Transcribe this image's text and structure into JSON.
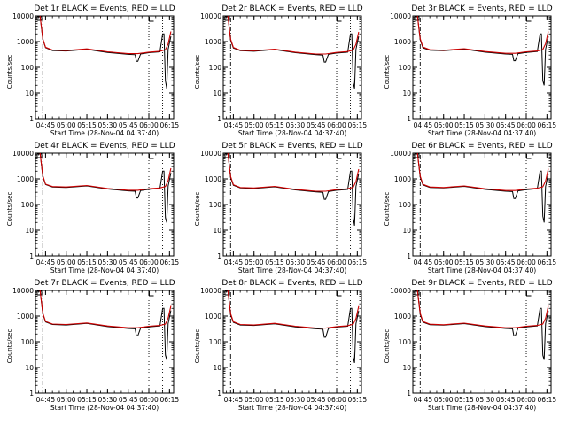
{
  "colors": {
    "background": "#ffffff",
    "events": "#000000",
    "lld": "#cc0000",
    "axes": "#000000"
  },
  "chart_data": [
    {
      "type": "line",
      "title": "Det 1r BLACK = Events, RED = LLD",
      "xlabel": "Start Time (28-Nov-04 04:37:40)",
      "ylabel": "Counts/sec",
      "x_ticks": [
        "04:45",
        "05:00",
        "05:15",
        "05:30",
        "05:45",
        "06:00",
        "06:15"
      ],
      "y_ticks": [
        "1",
        "10",
        "100",
        "1000",
        "10000"
      ],
      "y_scale": "log",
      "ylim": [
        1,
        10000
      ],
      "xlim": [
        "04:37:40",
        "06:18"
      ],
      "series": [
        {
          "name": "Events",
          "x": [
            "04:41",
            "04:43",
            "04:45",
            "04:50",
            "05:00",
            "05:15",
            "05:30",
            "05:45",
            "05:50",
            "05:51",
            "05:52",
            "05:54",
            "06:00",
            "06:08",
            "06:10",
            "06:11",
            "06:12",
            "06:13",
            "06:14",
            "06:16"
          ],
          "y": [
            10000,
            1200,
            580,
            450,
            430,
            500,
            380,
            320,
            310,
            170,
            170,
            330,
            370,
            400,
            2000,
            2000,
            30,
            15,
            500,
            1600
          ]
        },
        {
          "name": "LLD",
          "x": [
            "04:41",
            "04:43",
            "04:45",
            "04:50",
            "05:00",
            "05:15",
            "05:30",
            "05:45",
            "05:52",
            "06:00",
            "06:08",
            "06:12",
            "06:14",
            "06:16"
          ],
          "y": [
            10000,
            1300,
            600,
            470,
            450,
            520,
            400,
            340,
            340,
            390,
            420,
            480,
            800,
            2500
          ]
        }
      ]
    },
    {
      "type": "line",
      "title": "Det 2r BLACK = Events, RED = LLD",
      "xlabel": "Start Time (28-Nov-04 04:37:40)",
      "ylabel": "Counts/sec",
      "x_ticks": [
        "04:45",
        "05:00",
        "05:15",
        "05:30",
        "05:45",
        "06:00",
        "06:15"
      ],
      "y_ticks": [
        "1",
        "10",
        "100",
        "1000",
        "10000"
      ],
      "y_scale": "log",
      "ylim": [
        1,
        10000
      ],
      "xlim": [
        "04:37:40",
        "06:18"
      ],
      "series": [
        {
          "name": "Events",
          "x": [
            "04:41",
            "04:43",
            "04:45",
            "04:50",
            "05:00",
            "05:15",
            "05:30",
            "05:45",
            "05:50",
            "05:51",
            "05:52",
            "05:54",
            "06:00",
            "06:08",
            "06:10",
            "06:11",
            "06:12",
            "06:13",
            "06:14",
            "06:16"
          ],
          "y": [
            10000,
            1100,
            560,
            440,
            420,
            490,
            370,
            310,
            300,
            160,
            160,
            320,
            360,
            390,
            2000,
            2000,
            25,
            15,
            500,
            1600
          ]
        },
        {
          "name": "LLD",
          "x": [
            "04:41",
            "04:43",
            "04:45",
            "04:50",
            "05:00",
            "05:15",
            "05:30",
            "05:45",
            "05:52",
            "06:00",
            "06:08",
            "06:12",
            "06:14",
            "06:16"
          ],
          "y": [
            10000,
            1250,
            590,
            460,
            440,
            510,
            390,
            330,
            330,
            380,
            410,
            470,
            780,
            2400
          ]
        }
      ]
    },
    {
      "type": "line",
      "title": "Det 3r BLACK = Events, RED = LLD",
      "xlabel": "Start Time (28-Nov-04 04:37:40)",
      "ylabel": "Counts/sec",
      "x_ticks": [
        "04:45",
        "05:00",
        "05:15",
        "05:30",
        "05:45",
        "06:00",
        "06:15"
      ],
      "y_ticks": [
        "1",
        "10",
        "100",
        "1000",
        "10000"
      ],
      "y_scale": "log",
      "ylim": [
        1,
        10000
      ],
      "xlim": [
        "04:37:40",
        "06:18"
      ],
      "series": [
        {
          "name": "Events",
          "x": [
            "04:41",
            "04:43",
            "04:45",
            "04:50",
            "05:00",
            "05:15",
            "05:30",
            "05:45",
            "05:50",
            "05:51",
            "05:52",
            "05:54",
            "06:00",
            "06:08",
            "06:10",
            "06:11",
            "06:12",
            "06:13",
            "06:14",
            "06:16"
          ],
          "y": [
            10000,
            1150,
            570,
            460,
            440,
            510,
            390,
            330,
            320,
            180,
            180,
            340,
            380,
            410,
            2000,
            2000,
            30,
            20,
            500,
            1600
          ]
        },
        {
          "name": "LLD",
          "x": [
            "04:41",
            "04:43",
            "04:45",
            "04:50",
            "05:00",
            "05:15",
            "05:30",
            "05:45",
            "05:52",
            "06:00",
            "06:08",
            "06:12",
            "06:14",
            "06:16"
          ],
          "y": [
            10000,
            1300,
            610,
            480,
            460,
            530,
            410,
            350,
            350,
            400,
            430,
            490,
            820,
            2500
          ]
        }
      ]
    },
    {
      "type": "line",
      "title": "Det 4r BLACK = Events, RED = LLD",
      "xlabel": "Start Time (28-Nov-04 04:37:40)",
      "ylabel": "Counts/sec",
      "x_ticks": [
        "04:45",
        "05:00",
        "05:15",
        "05:30",
        "05:45",
        "06:00",
        "06:15"
      ],
      "y_ticks": [
        "1",
        "10",
        "100",
        "1000",
        "10000"
      ],
      "y_scale": "log",
      "ylim": [
        1,
        10000
      ],
      "xlim": [
        "04:37:40",
        "06:18"
      ],
      "series": [
        {
          "name": "Events",
          "x": [
            "04:41",
            "04:43",
            "04:45",
            "04:50",
            "05:00",
            "05:15",
            "05:30",
            "05:45",
            "05:50",
            "05:51",
            "05:52",
            "05:54",
            "06:00",
            "06:08",
            "06:10",
            "06:11",
            "06:12",
            "06:13",
            "06:14",
            "06:16"
          ],
          "y": [
            10000,
            1200,
            600,
            480,
            460,
            530,
            400,
            340,
            330,
            180,
            180,
            350,
            390,
            420,
            2000,
            2000,
            30,
            20,
            520,
            1700
          ]
        },
        {
          "name": "LLD",
          "x": [
            "04:41",
            "04:43",
            "04:45",
            "04:50",
            "05:00",
            "05:15",
            "05:30",
            "05:45",
            "05:52",
            "06:00",
            "06:08",
            "06:12",
            "06:14",
            "06:16"
          ],
          "y": [
            10000,
            1350,
            620,
            500,
            480,
            550,
            420,
            360,
            360,
            410,
            440,
            500,
            850,
            2600
          ]
        }
      ]
    },
    {
      "type": "line",
      "title": "Det 5r BLACK = Events, RED = LLD",
      "xlabel": "Start Time (28-Nov-04 04:37:40)",
      "ylabel": "Counts/sec",
      "x_ticks": [
        "04:45",
        "05:00",
        "05:15",
        "05:30",
        "05:45",
        "06:00",
        "06:15"
      ],
      "y_ticks": [
        "1",
        "10",
        "100",
        "1000",
        "10000"
      ],
      "y_scale": "log",
      "ylim": [
        1,
        10000
      ],
      "xlim": [
        "04:37:40",
        "06:18"
      ],
      "series": [
        {
          "name": "Events",
          "x": [
            "04:41",
            "04:43",
            "04:45",
            "04:50",
            "05:00",
            "05:15",
            "05:30",
            "05:45",
            "05:50",
            "05:51",
            "05:52",
            "05:54",
            "06:00",
            "06:08",
            "06:10",
            "06:11",
            "06:12",
            "06:13",
            "06:14",
            "06:16"
          ],
          "y": [
            10000,
            1100,
            560,
            440,
            420,
            490,
            370,
            310,
            300,
            160,
            160,
            320,
            360,
            390,
            2000,
            2000,
            30,
            15,
            500,
            1600
          ]
        },
        {
          "name": "LLD",
          "x": [
            "04:41",
            "04:43",
            "04:45",
            "04:50",
            "05:00",
            "05:15",
            "05:30",
            "05:45",
            "05:52",
            "06:00",
            "06:08",
            "06:12",
            "06:14",
            "06:16"
          ],
          "y": [
            10000,
            1250,
            590,
            460,
            440,
            510,
            390,
            330,
            330,
            380,
            410,
            470,
            790,
            2400
          ]
        }
      ]
    },
    {
      "type": "line",
      "title": "Det 6r BLACK = Events, RED = LLD",
      "xlabel": "Start Time (28-Nov-04 04:37:40)",
      "ylabel": "Counts/sec",
      "x_ticks": [
        "04:45",
        "05:00",
        "05:15",
        "05:30",
        "05:45",
        "06:00",
        "06:15"
      ],
      "y_ticks": [
        "1",
        "10",
        "100",
        "1000",
        "10000"
      ],
      "y_scale": "log",
      "ylim": [
        1,
        10000
      ],
      "xlim": [
        "04:37:40",
        "06:18"
      ],
      "series": [
        {
          "name": "Events",
          "x": [
            "04:41",
            "04:43",
            "04:45",
            "04:50",
            "05:00",
            "05:15",
            "05:30",
            "05:45",
            "05:50",
            "05:51",
            "05:52",
            "05:54",
            "06:00",
            "06:08",
            "06:10",
            "06:11",
            "06:12",
            "06:13",
            "06:14",
            "06:16"
          ],
          "y": [
            10000,
            1150,
            580,
            460,
            440,
            510,
            390,
            330,
            320,
            170,
            170,
            340,
            380,
            410,
            2000,
            2000,
            35,
            20,
            500,
            1600
          ]
        },
        {
          "name": "LLD",
          "x": [
            "04:41",
            "04:43",
            "04:45",
            "04:50",
            "05:00",
            "05:15",
            "05:30",
            "05:45",
            "05:52",
            "06:00",
            "06:08",
            "06:12",
            "06:14",
            "06:16"
          ],
          "y": [
            10000,
            1300,
            610,
            480,
            460,
            530,
            410,
            350,
            350,
            400,
            430,
            490,
            820,
            2500
          ]
        }
      ]
    },
    {
      "type": "line",
      "title": "Det 7r BLACK = Events, RED = LLD",
      "xlabel": "Start Time (28-Nov-04 04:37:40)",
      "ylabel": "Counts/sec",
      "x_ticks": [
        "04:45",
        "05:00",
        "05:15",
        "05:30",
        "05:45",
        "06:00",
        "06:15"
      ],
      "y_ticks": [
        "1",
        "10",
        "100",
        "1000",
        "10000"
      ],
      "y_scale": "log",
      "ylim": [
        1,
        10000
      ],
      "xlim": [
        "04:37:40",
        "06:18"
      ],
      "series": [
        {
          "name": "Events",
          "x": [
            "04:41",
            "04:43",
            "04:45",
            "04:50",
            "05:00",
            "05:15",
            "05:30",
            "05:45",
            "05:50",
            "05:51",
            "05:52",
            "05:54",
            "06:00",
            "06:08",
            "06:10",
            "06:11",
            "06:12",
            "06:13",
            "06:14",
            "06:16"
          ],
          "y": [
            10000,
            1200,
            590,
            470,
            450,
            520,
            390,
            330,
            320,
            170,
            170,
            340,
            380,
            410,
            2000,
            2000,
            30,
            20,
            510,
            1650
          ]
        },
        {
          "name": "LLD",
          "x": [
            "04:41",
            "04:43",
            "04:45",
            "04:50",
            "05:00",
            "05:15",
            "05:30",
            "05:45",
            "05:52",
            "06:00",
            "06:08",
            "06:12",
            "06:14",
            "06:16"
          ],
          "y": [
            10000,
            1320,
            620,
            490,
            470,
            540,
            410,
            350,
            350,
            400,
            430,
            490,
            830,
            2500
          ]
        }
      ]
    },
    {
      "type": "line",
      "title": "Det 8r BLACK = Events, RED = LLD",
      "xlabel": "Start Time (28-Nov-04 04:37:40)",
      "ylabel": "Counts/sec",
      "x_ticks": [
        "04:45",
        "05:00",
        "05:15",
        "05:30",
        "05:45",
        "06:00",
        "06:15"
      ],
      "y_ticks": [
        "1",
        "10",
        "100",
        "1000",
        "10000"
      ],
      "y_scale": "log",
      "ylim": [
        1,
        10000
      ],
      "xlim": [
        "04:37:40",
        "06:18"
      ],
      "series": [
        {
          "name": "Events",
          "x": [
            "04:41",
            "04:43",
            "04:45",
            "04:50",
            "05:00",
            "05:15",
            "05:30",
            "05:45",
            "05:50",
            "05:51",
            "05:52",
            "05:54",
            "06:00",
            "06:08",
            "06:10",
            "06:11",
            "06:12",
            "06:13",
            "06:14",
            "06:16"
          ],
          "y": [
            10000,
            1100,
            570,
            450,
            430,
            500,
            380,
            320,
            310,
            150,
            150,
            330,
            370,
            400,
            2000,
            2000,
            25,
            15,
            500,
            1600
          ]
        },
        {
          "name": "LLD",
          "x": [
            "04:41",
            "04:43",
            "04:45",
            "04:50",
            "05:00",
            "05:15",
            "05:30",
            "05:45",
            "05:52",
            "06:00",
            "06:08",
            "06:12",
            "06:14",
            "06:16"
          ],
          "y": [
            10000,
            1250,
            600,
            470,
            450,
            520,
            400,
            340,
            340,
            390,
            420,
            480,
            800,
            2450
          ]
        }
      ]
    },
    {
      "type": "line",
      "title": "Det 9r BLACK = Events, RED = LLD",
      "xlabel": "Start Time (28-Nov-04 04:37:40)",
      "ylabel": "Counts/sec",
      "x_ticks": [
        "04:45",
        "05:00",
        "05:15",
        "05:30",
        "05:45",
        "06:00",
        "06:15"
      ],
      "y_ticks": [
        "1",
        "10",
        "100",
        "1000",
        "10000"
      ],
      "y_scale": "log",
      "ylim": [
        1,
        10000
      ],
      "xlim": [
        "04:37:40",
        "06:18"
      ],
      "series": [
        {
          "name": "Events",
          "x": [
            "04:41",
            "04:43",
            "04:45",
            "04:50",
            "05:00",
            "05:15",
            "05:30",
            "05:45",
            "05:50",
            "05:51",
            "05:52",
            "05:54",
            "06:00",
            "06:08",
            "06:10",
            "06:11",
            "06:12",
            "06:13",
            "06:14",
            "06:16"
          ],
          "y": [
            10000,
            1150,
            580,
            460,
            440,
            510,
            390,
            330,
            320,
            170,
            170,
            340,
            380,
            410,
            2000,
            2000,
            30,
            20,
            500,
            1600
          ]
        },
        {
          "name": "LLD",
          "x": [
            "04:41",
            "04:43",
            "04:45",
            "04:50",
            "05:00",
            "05:15",
            "05:30",
            "05:45",
            "05:52",
            "06:00",
            "06:08",
            "06:12",
            "06:14",
            "06:16"
          ],
          "y": [
            10000,
            1300,
            610,
            480,
            460,
            530,
            410,
            350,
            350,
            400,
            430,
            490,
            820,
            2500
          ]
        }
      ]
    }
  ]
}
